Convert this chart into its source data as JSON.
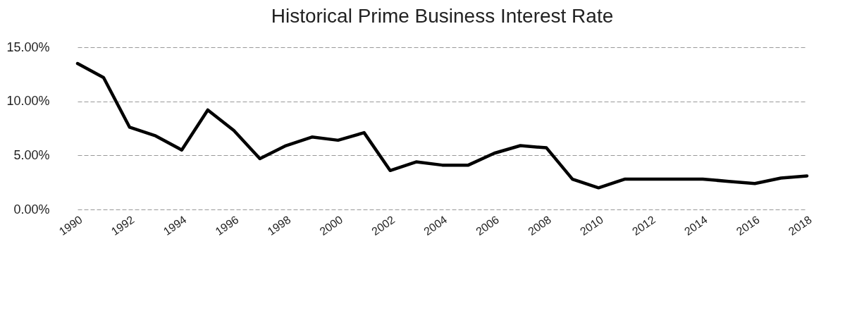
{
  "chart_data": {
    "type": "line",
    "title": "Historical Prime Business Interest Rate",
    "x": [
      1990,
      1991,
      1992,
      1993,
      1994,
      1995,
      1996,
      1997,
      1998,
      1999,
      2000,
      2001,
      2002,
      2003,
      2004,
      2005,
      2006,
      2007,
      2008,
      2009,
      2010,
      2011,
      2012,
      2013,
      2014,
      2015,
      2016,
      2017,
      2018
    ],
    "series": [
      {
        "color": "#000000",
        "values": [
          13.5,
          12.2,
          7.6,
          6.8,
          5.5,
          9.2,
          7.3,
          4.7,
          5.9,
          6.7,
          6.4,
          7.1,
          3.6,
          4.4,
          4.1,
          4.1,
          5.2,
          5.9,
          5.7,
          2.8,
          2.0,
          2.8,
          2.8,
          2.8,
          2.8,
          2.6,
          2.4,
          2.9,
          3.1
        ]
      }
    ],
    "xlim": [
      1990,
      2018
    ],
    "xticks": [
      1990,
      1992,
      1994,
      1996,
      1998,
      2000,
      2002,
      2004,
      2006,
      2008,
      2010,
      2012,
      2014,
      2016,
      2018
    ],
    "ylim": [
      0,
      15
    ],
    "yticks": [
      {
        "value": 0,
        "label": "0.00%"
      },
      {
        "value": 5,
        "label": "5.00%"
      },
      {
        "value": 10,
        "label": "10.00%"
      },
      {
        "value": 15,
        "label": "15.00%"
      }
    ],
    "grid": "y",
    "marker": "none",
    "line_style": "solid"
  }
}
